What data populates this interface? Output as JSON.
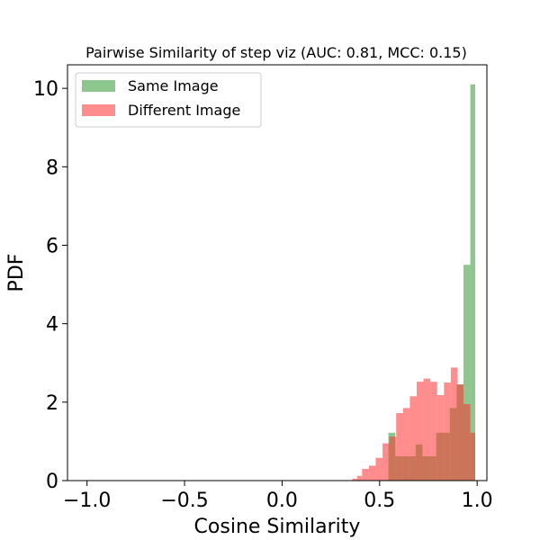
{
  "chart_data": {
    "type": "bar",
    "title": "Pairwise Similarity of step viz (AUC: 0.81, MCC: 0.15)",
    "xlabel": "Cosine Similarity",
    "ylabel": "PDF",
    "xlim": [
      -1.1,
      1.05
    ],
    "ylim": [
      0,
      10.6
    ],
    "xticks": [
      -1.0,
      -0.5,
      0.0,
      0.5,
      1.0
    ],
    "xtick_labels": [
      "−1.0",
      "−0.5",
      "0.0",
      "0.5",
      "1.0"
    ],
    "yticks": [
      0,
      2,
      4,
      6,
      8,
      10
    ],
    "ytick_labels": [
      "0",
      "2",
      "4",
      "6",
      "8",
      "10"
    ],
    "legend_position": "top-left",
    "grid": false,
    "series": [
      {
        "name": "Same Image",
        "color": "#4ca64c",
        "alpha": 0.63,
        "bins": [
          [
            0.545,
            0.58,
            1.22
          ],
          [
            0.58,
            0.615,
            0.62
          ],
          [
            0.615,
            0.65,
            0.62
          ],
          [
            0.65,
            0.685,
            0.62
          ],
          [
            0.685,
            0.72,
            0.92
          ],
          [
            0.72,
            0.755,
            0.62
          ],
          [
            0.755,
            0.79,
            0.62
          ],
          [
            0.79,
            0.825,
            1.22
          ],
          [
            0.825,
            0.86,
            1.22
          ],
          [
            0.86,
            0.895,
            1.85
          ],
          [
            0.895,
            0.93,
            2.45
          ],
          [
            0.93,
            0.965,
            5.5
          ],
          [
            0.965,
            0.99,
            10.1
          ]
        ]
      },
      {
        "name": "Different Image",
        "color": "#ff3030",
        "alpha": 0.55,
        "bins": [
          [
            0.36,
            0.385,
            0.05
          ],
          [
            0.385,
            0.41,
            0.12
          ],
          [
            0.41,
            0.445,
            0.3
          ],
          [
            0.445,
            0.48,
            0.38
          ],
          [
            0.48,
            0.515,
            0.58
          ],
          [
            0.515,
            0.55,
            0.95
          ],
          [
            0.55,
            0.585,
            1.12
          ],
          [
            0.585,
            0.62,
            1.72
          ],
          [
            0.62,
            0.655,
            1.85
          ],
          [
            0.655,
            0.69,
            2.15
          ],
          [
            0.69,
            0.725,
            2.52
          ],
          [
            0.725,
            0.76,
            2.6
          ],
          [
            0.76,
            0.795,
            2.52
          ],
          [
            0.795,
            0.83,
            2.18
          ],
          [
            0.83,
            0.865,
            2.5
          ],
          [
            0.865,
            0.9,
            2.88
          ],
          [
            0.9,
            0.93,
            2.45
          ],
          [
            0.93,
            0.965,
            1.95
          ],
          [
            0.965,
            0.99,
            1.22
          ]
        ]
      }
    ]
  }
}
